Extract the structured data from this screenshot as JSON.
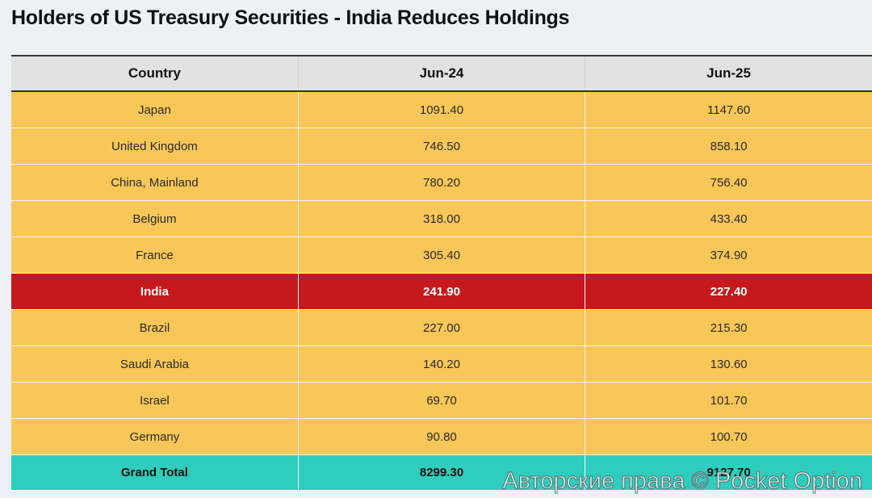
{
  "title": "Holders of US Treasury Securities - India Reduces Holdings",
  "table": {
    "headers": [
      "Country",
      "Jun-24",
      "Jun-25"
    ],
    "rows": [
      {
        "country": "Japan",
        "jun24": "1091.40",
        "jun25": "1147.60"
      },
      {
        "country": "United Kingdom",
        "jun24": "746.50",
        "jun25": "858.10"
      },
      {
        "country": "China, Mainland",
        "jun24": "780.20",
        "jun25": "756.40"
      },
      {
        "country": "Belgium",
        "jun24": "318.00",
        "jun25": "433.40"
      },
      {
        "country": "France",
        "jun24": "305.40",
        "jun25": "374.90"
      },
      {
        "country": "India",
        "jun24": "241.90",
        "jun25": "227.40"
      },
      {
        "country": "Brazil",
        "jun24": "227.00",
        "jun25": "215.30"
      },
      {
        "country": "Saudi Arabia",
        "jun24": "140.20",
        "jun25": "130.60"
      },
      {
        "country": "Israel",
        "jun24": "69.70",
        "jun25": "101.70"
      },
      {
        "country": "Germany",
        "jun24": "90.80",
        "jun25": "100.70"
      }
    ],
    "total": {
      "label": "Grand Total",
      "jun24": "8299.30",
      "jun25": "9127.70"
    }
  },
  "watermark": "Авторские права © Pocket Option",
  "colors": {
    "row": "#f8c758",
    "highlight": "#c6191d",
    "total": "#2fcdbd",
    "header": "#e2e2e2"
  }
}
